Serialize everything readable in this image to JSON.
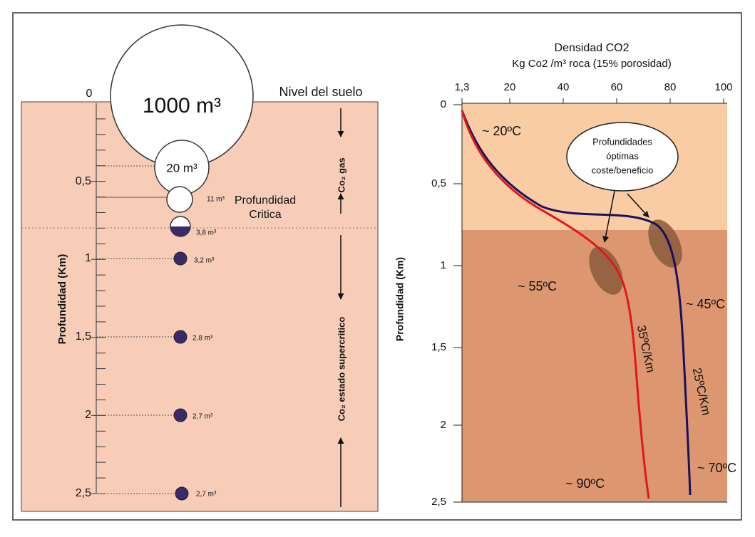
{
  "left": {
    "ground_zero": "0",
    "ground_label": "Nivel del suelo",
    "depth_ticks": [
      "0,5",
      "1",
      "1,5",
      "2",
      "2,5"
    ],
    "axis_label": "Profundidad (Km)",
    "volumes": [
      "1000 m³",
      "20 m³",
      "11 m³",
      "3,8 m³",
      "3,2 m³",
      "2,8 m³",
      "2,7 m³",
      "2,7 m³"
    ],
    "critical": [
      "Profundidad",
      "Critica"
    ],
    "gas_label": "Co₂ gas",
    "supercritical_label": "Co₂ estado supercritico"
  },
  "right": {
    "title": "Densidad CO2",
    "subtitle": "Kg Co2 /m³ roca (15% porosidad)",
    "x_ticks": [
      "1,3",
      "20",
      "40",
      "60",
      "80",
      "100"
    ],
    "y_ticks": [
      "0",
      "0,5",
      "1",
      "1,5",
      "2",
      "2,5"
    ],
    "axis_label": "Profundidad (Km)",
    "callout": [
      "Profundidades",
      "óptimas",
      "coste/beneficio"
    ],
    "temps": [
      "~ 20ºC",
      "~ 55ºC",
      "~ 45ºC",
      "~ 70ºC",
      "~ 90ºC"
    ],
    "gradients": [
      "35ºC/Km",
      "25ºC/Km"
    ]
  }
}
